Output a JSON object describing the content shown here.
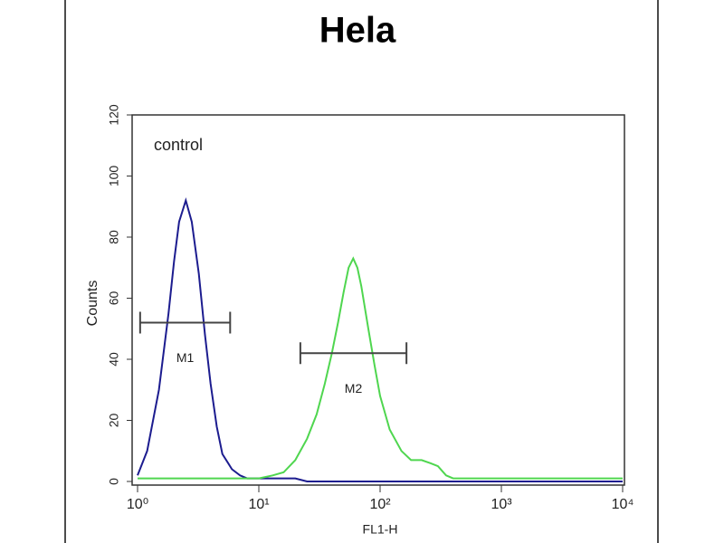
{
  "chart_data": {
    "type": "line",
    "title": "Hela",
    "annotation": "control",
    "x_label": "FL1-H",
    "y_label": "Counts",
    "xscale": "log",
    "xlim": [
      1,
      10000
    ],
    "ylim": [
      0,
      120
    ],
    "xticks": [
      {
        "value": 1,
        "label": "10⁰"
      },
      {
        "value": 10,
        "label": "10¹"
      },
      {
        "value": 100,
        "label": "10²"
      },
      {
        "value": 1000,
        "label": "10³"
      },
      {
        "value": 10000,
        "label": "10⁴"
      }
    ],
    "yticks": [
      0,
      20,
      40,
      60,
      80,
      100,
      120
    ],
    "grid": false,
    "x": [
      1,
      1.2,
      1.5,
      1.8,
      2,
      2.2,
      2.5,
      2.8,
      3.2,
      3.6,
      4,
      4.5,
      5,
      6,
      7,
      8,
      10,
      13,
      16,
      20,
      25,
      30,
      35,
      40,
      45,
      50,
      55,
      60,
      65,
      70,
      80,
      90,
      100,
      120,
      150,
      180,
      220,
      260,
      300,
      350,
      400,
      500,
      1000,
      3000,
      10000
    ],
    "series": [
      {
        "color": "#1c1c8f",
        "values": [
          2,
          10,
          30,
          55,
          72,
          85,
          92,
          85,
          68,
          48,
          32,
          18,
          9,
          4,
          2,
          1,
          1,
          1,
          1,
          1,
          0,
          0,
          0,
          0,
          0,
          0,
          0,
          0,
          0,
          0,
          0,
          0,
          0,
          0,
          0,
          0,
          0,
          0,
          0,
          0,
          0,
          0,
          0,
          0,
          0
        ]
      },
      {
        "color": "#4fd64f",
        "values": [
          1,
          1,
          1,
          1,
          1,
          1,
          1,
          1,
          1,
          1,
          1,
          1,
          1,
          1,
          1,
          1,
          1,
          2,
          3,
          7,
          14,
          22,
          32,
          42,
          52,
          62,
          70,
          73,
          70,
          64,
          50,
          38,
          28,
          17,
          10,
          7,
          7,
          6,
          5,
          2,
          1,
          1,
          1,
          1,
          1
        ]
      }
    ],
    "markers": [
      {
        "label": "M1",
        "range": [
          1.05,
          5.8
        ],
        "y": 52
      },
      {
        "label": "M2",
        "range": [
          22,
          165
        ],
        "y": 42
      }
    ]
  }
}
